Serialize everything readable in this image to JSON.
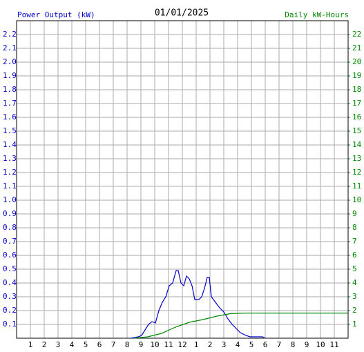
{
  "chart_data": {
    "type": "line",
    "title": "01/01/2025",
    "y_label": "Power Output (kW)",
    "y2_label": "Daily kW-Hours",
    "xlim": [
      0,
      24
    ],
    "xticks": [
      1,
      2,
      3,
      4,
      5,
      6,
      7,
      8,
      9,
      10,
      11,
      12,
      {
        "value": 13,
        "label": "1"
      },
      {
        "value": 14,
        "label": "2"
      },
      {
        "value": 15,
        "label": "3"
      },
      {
        "value": 16,
        "label": "4"
      },
      {
        "value": 17,
        "label": "5"
      },
      {
        "value": 18,
        "label": "6"
      },
      {
        "value": 19,
        "label": "7"
      },
      {
        "value": 20,
        "label": "8"
      },
      {
        "value": 21,
        "label": "9"
      },
      {
        "value": 22,
        "label": "10"
      },
      {
        "value": 23,
        "label": "11"
      }
    ],
    "ylim": [
      0,
      2.3
    ],
    "yticks": [
      0.1,
      0.2,
      0.3,
      0.4,
      0.5,
      0.6,
      0.7,
      0.8,
      0.9,
      {
        "value": 1,
        "label": "1.0"
      },
      1.1,
      1.2,
      1.3,
      1.4,
      1.5,
      1.6,
      1.7,
      1.8,
      1.9,
      {
        "value": 2,
        "label": "2.0"
      },
      2.1,
      2.2
    ],
    "y2lim": [
      0,
      23
    ],
    "y2ticks": [
      1,
      2,
      3,
      4,
      5,
      6,
      7,
      8,
      9,
      10,
      11,
      12,
      13,
      14,
      15,
      16,
      17,
      18,
      19,
      20,
      21,
      22
    ],
    "grid": true,
    "series": [
      {
        "name": "Power Output (kW)",
        "color": "#0000cc",
        "x": [
          8.3,
          8.8,
          9.05,
          9.3,
          9.55,
          9.8,
          10.05,
          10.3,
          10.55,
          10.8,
          11.05,
          11.3,
          11.55,
          11.7,
          11.9,
          12.1,
          12.3,
          12.5,
          12.7,
          12.9,
          13.2,
          13.4,
          13.6,
          13.8,
          13.95,
          14.1,
          14.4,
          14.7,
          15.0,
          15.3,
          15.6,
          15.9,
          16.2,
          16.6,
          16.9,
          17.8,
          18.0
        ],
        "values": [
          0,
          0.01,
          0.02,
          0.06,
          0.1,
          0.12,
          0.11,
          0.2,
          0.26,
          0.3,
          0.38,
          0.4,
          0.49,
          0.49,
          0.4,
          0.38,
          0.45,
          0.43,
          0.38,
          0.28,
          0.28,
          0.3,
          0.36,
          0.44,
          0.44,
          0.3,
          0.26,
          0.22,
          0.19,
          0.14,
          0.1,
          0.07,
          0.04,
          0.02,
          0.01,
          0.01,
          0
        ]
      },
      {
        "name": "Daily kW-Hours",
        "color": "#008800",
        "axis": "y2",
        "x": [
          8.5,
          9.5,
          10.5,
          11.5,
          12.5,
          13.5,
          14.5,
          15.5,
          16.5,
          24
        ],
        "values": [
          0,
          0.1,
          0.35,
          0.8,
          1.15,
          1.35,
          1.6,
          1.78,
          1.82,
          1.82
        ]
      }
    ]
  }
}
